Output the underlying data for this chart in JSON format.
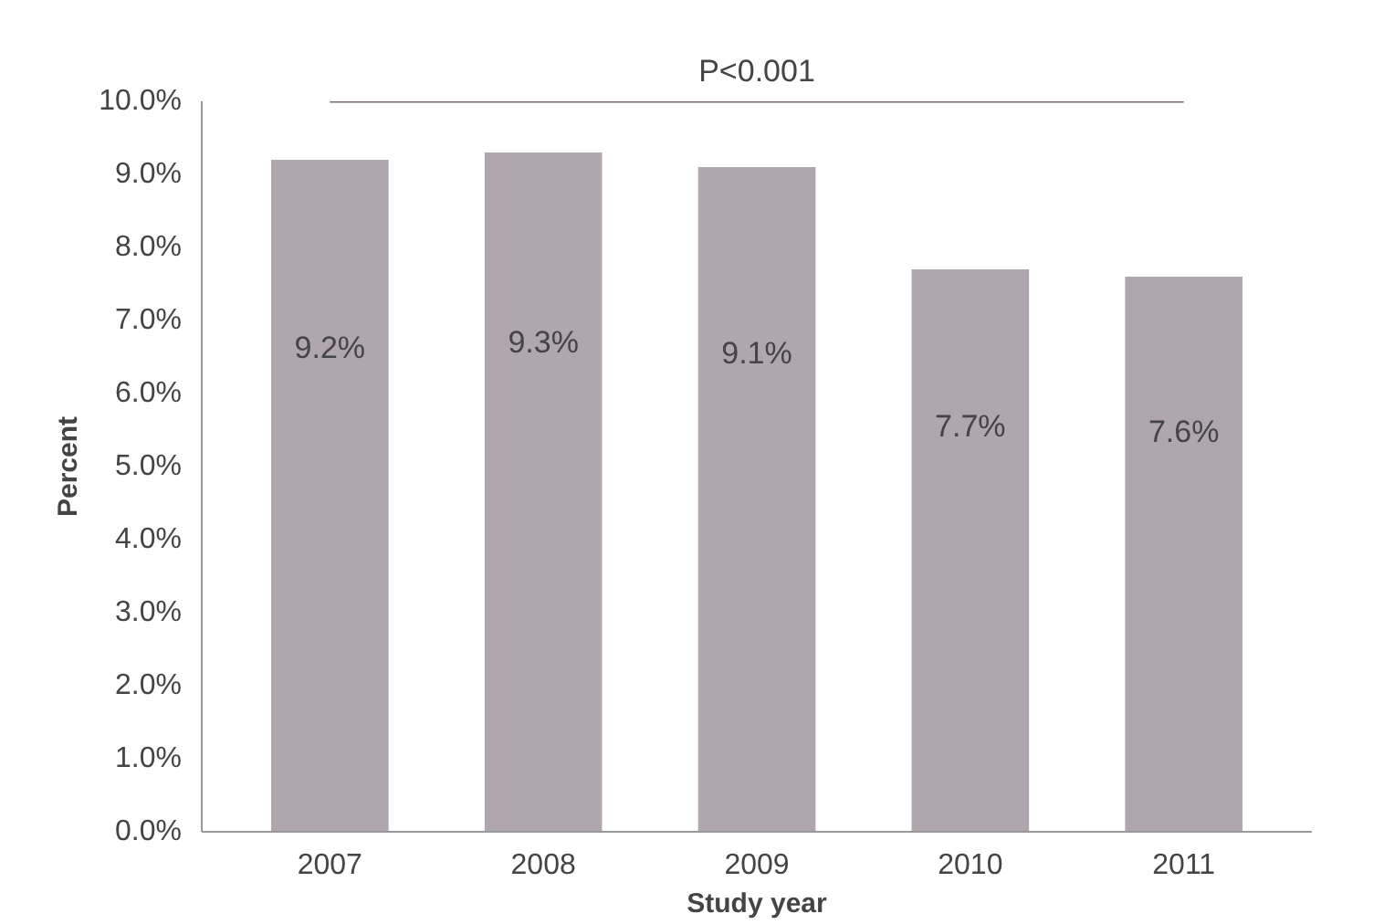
{
  "chart_data": {
    "type": "bar",
    "xlabel": "Study year",
    "ylabel": "Percent",
    "categories": [
      "2007",
      "2008",
      "2009",
      "2010",
      "2011"
    ],
    "values": [
      9.2,
      9.3,
      9.1,
      7.7,
      7.6
    ],
    "value_labels": [
      "9.2%",
      "9.3%",
      "9.1%",
      "7.7%",
      "7.6%"
    ],
    "color": "#b0a6ae",
    "ylim": [
      0,
      10
    ],
    "yticks": [
      {
        "value": 0,
        "label": "0.0%"
      },
      {
        "value": 1,
        "label": "1.0%"
      },
      {
        "value": 2,
        "label": "2.0%"
      },
      {
        "value": 3,
        "label": "3.0%"
      },
      {
        "value": 4,
        "label": "4.0%"
      },
      {
        "value": 5,
        "label": "5.0%"
      },
      {
        "value": 6,
        "label": "6.0%"
      },
      {
        "value": 7,
        "label": "7.0%"
      },
      {
        "value": 8,
        "label": "8.0%"
      },
      {
        "value": 9,
        "label": "9.0%"
      },
      {
        "value": 10,
        "label": "10.0%"
      }
    ],
    "annotations": [
      "P<0.001"
    ],
    "grid": false
  }
}
